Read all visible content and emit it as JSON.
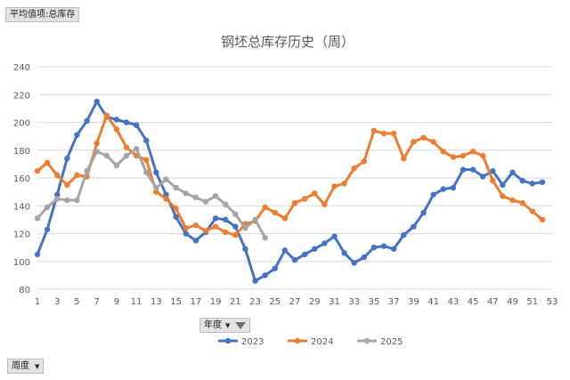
{
  "pivot": {
    "values_field": "平均值项:总库存",
    "legend_field": "年度",
    "axis_field": "周度"
  },
  "chart_data": {
    "type": "line",
    "title": "钢坯总库存历史（周）",
    "xlabel": "",
    "ylabel": "",
    "xlim": [
      1,
      53
    ],
    "ylim": [
      80,
      240
    ],
    "x_ticks": [
      1,
      3,
      5,
      7,
      9,
      11,
      13,
      15,
      17,
      19,
      21,
      23,
      25,
      27,
      29,
      31,
      33,
      35,
      37,
      39,
      41,
      43,
      45,
      47,
      49,
      51,
      53
    ],
    "y_ticks": [
      80,
      100,
      120,
      140,
      160,
      180,
      200,
      220,
      240
    ],
    "grid": true,
    "legend_position": "bottom",
    "series": [
      {
        "name": "2023",
        "color": "#4472c4",
        "x": [
          1,
          2,
          3,
          4,
          5,
          6,
          7,
          8,
          9,
          10,
          11,
          12,
          13,
          14,
          15,
          16,
          17,
          18,
          19,
          20,
          21,
          22,
          23,
          24,
          25,
          26,
          27,
          28,
          29,
          30,
          31,
          32,
          33,
          34,
          35,
          36,
          37,
          38,
          39,
          40,
          41,
          42,
          43,
          44,
          45,
          46,
          47,
          48,
          49,
          50,
          51,
          52
        ],
        "values": [
          105,
          123,
          148,
          174,
          191,
          201,
          215,
          204,
          202,
          200,
          198,
          187,
          164,
          148,
          132,
          120,
          115,
          121,
          131,
          130,
          125,
          109,
          86,
          90,
          95,
          108,
          101,
          105,
          109,
          113,
          118,
          106,
          99,
          103,
          110,
          111,
          109,
          119,
          125,
          135,
          148,
          152,
          153,
          166,
          166,
          161,
          165,
          155,
          164,
          158,
          156,
          157
        ]
      },
      {
        "name": "2024",
        "color": "#ed7d31",
        "x": [
          1,
          2,
          3,
          4,
          5,
          6,
          7,
          8,
          9,
          10,
          11,
          12,
          13,
          14,
          15,
          16,
          17,
          18,
          19,
          20,
          21,
          22,
          23,
          24,
          25,
          26,
          27,
          28,
          29,
          30,
          31,
          32,
          33,
          34,
          35,
          36,
          37,
          38,
          39,
          40,
          41,
          42,
          43,
          44,
          45,
          46,
          47,
          48,
          49,
          50,
          51,
          52
        ],
        "values": [
          165,
          171,
          162,
          155,
          162,
          161,
          185,
          205,
          195,
          182,
          176,
          173,
          150,
          145,
          138,
          124,
          126,
          122,
          125,
          121,
          119,
          127,
          129,
          139,
          135,
          131,
          142,
          145,
          149,
          141,
          154,
          156,
          167,
          172,
          194,
          192,
          192,
          174,
          186,
          189,
          186,
          179,
          175,
          176,
          179,
          176,
          158,
          147,
          144,
          142,
          136,
          130
        ]
      },
      {
        "name": "2025",
        "color": "#a5a5a5",
        "x": [
          1,
          2,
          3,
          4,
          5,
          6,
          7,
          8,
          9,
          10,
          11,
          12,
          13,
          14,
          15,
          16,
          17,
          18,
          19,
          20,
          21,
          22,
          23,
          24
        ],
        "values": [
          131,
          139,
          145,
          144,
          144,
          165,
          179,
          176,
          169,
          176,
          181,
          164,
          153,
          159,
          153,
          149,
          146,
          143,
          147,
          141,
          134,
          124,
          130,
          117
        ]
      }
    ]
  }
}
